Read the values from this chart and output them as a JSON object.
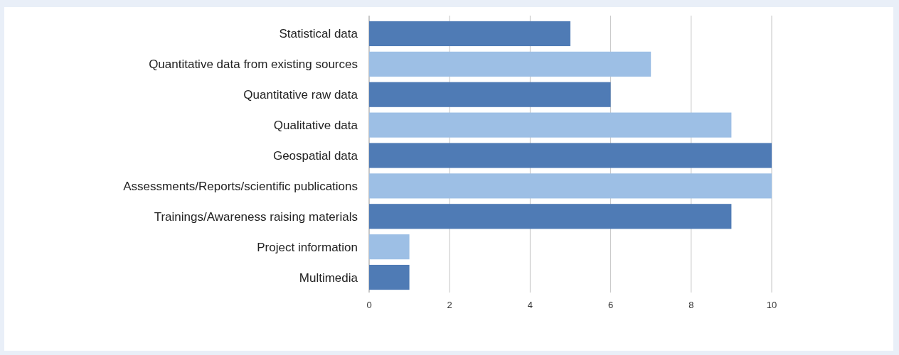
{
  "chart_data": {
    "type": "bar",
    "orientation": "horizontal",
    "categories": [
      "Statistical data",
      "Quantitative data from existing sources",
      "Quantitative raw data",
      "Qualitative data",
      "Geospatial data",
      "Assessments/Reports/scientific publications",
      "Trainings/Awareness raising materials",
      "Project information",
      "Multimedia"
    ],
    "values": [
      5,
      7,
      6,
      9,
      10,
      10,
      9,
      1,
      1
    ],
    "colors": [
      "#4f7bb5",
      "#9dbfe5",
      "#4f7bb5",
      "#9dbfe5",
      "#4f7bb5",
      "#9dbfe5",
      "#4f7bb5",
      "#9dbfe5",
      "#4f7bb5"
    ],
    "xlim": [
      0,
      10
    ],
    "xticks": [
      0,
      2,
      4,
      6,
      8,
      10
    ],
    "grid": "x"
  }
}
